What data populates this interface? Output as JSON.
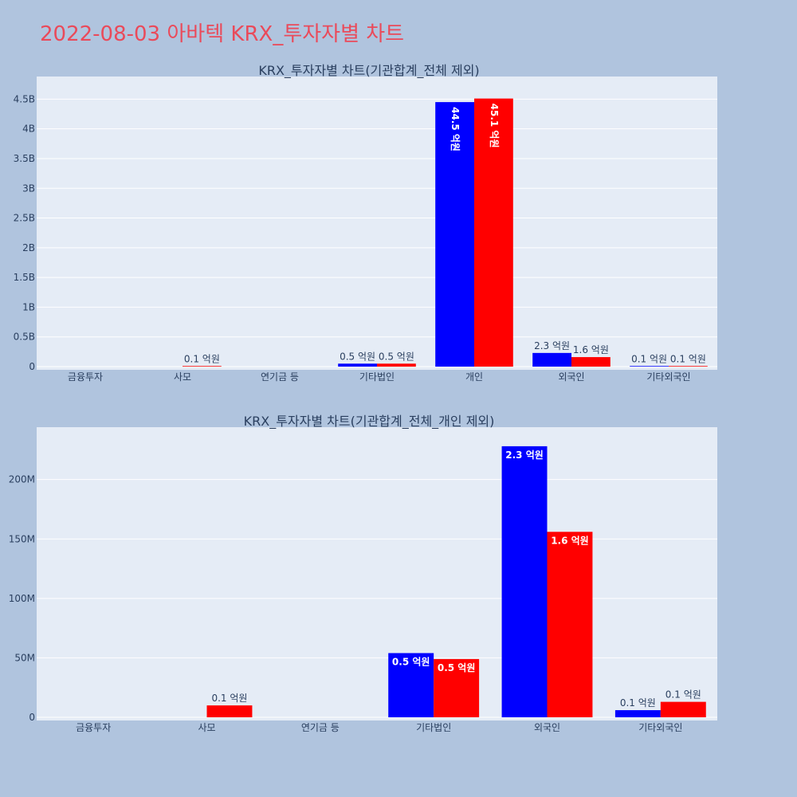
{
  "title": "2022-08-03 아바텍 KRX_투자자별 차트",
  "colors": {
    "series_a": "#0000ff",
    "series_b": "#ff0000",
    "plot_bg": "#e5ecf6",
    "page_bg": "#b0c4de",
    "title": "#ea4a5a"
  },
  "chart_data": [
    {
      "type": "bar",
      "title": "KRX_투자자별 차트(기관합계_전체 제외)",
      "categories": [
        "금융투자",
        "사모",
        "연기금 등",
        "기타법인",
        "개인",
        "외국인",
        "기타외국인"
      ],
      "series": [
        {
          "values": [
            0,
            0,
            0,
            50000000,
            4450000000,
            230000000,
            10000000
          ],
          "labels": [
            "",
            "",
            "",
            "0.5 억원",
            "44.5 억원",
            "2.3 억원",
            "0.1 억원"
          ]
        },
        {
          "values": [
            0,
            10000000,
            0,
            50000000,
            4510000000,
            160000000,
            10000000
          ],
          "labels": [
            "",
            "0.1 억원",
            "",
            "0.5 억원",
            "45.1 억원",
            "1.6 억원",
            "0.1 억원"
          ]
        }
      ],
      "ylim": [
        0,
        4800000000
      ],
      "yticks": [
        0,
        500000000,
        1000000000,
        1500000000,
        2000000000,
        2500000000,
        3000000000,
        3500000000,
        4000000000,
        4500000000
      ],
      "ytick_labels": [
        "0",
        "0.5B",
        "1B",
        "1.5B",
        "2B",
        "2.5B",
        "3B",
        "3.5B",
        "4B",
        "4.5B"
      ],
      "grid": true
    },
    {
      "type": "bar",
      "title": "KRX_투자자별 차트(기관합계_전체_개인 제외)",
      "categories": [
        "금융투자",
        "사모",
        "연기금 등",
        "기타법인",
        "외국인",
        "기타외국인"
      ],
      "series": [
        {
          "values": [
            0,
            0,
            0,
            54000000,
            228000000,
            6000000
          ],
          "labels": [
            "",
            "",
            "",
            "0.5 억원",
            "2.3 억원",
            "0.1 억원"
          ]
        },
        {
          "values": [
            0,
            10000000,
            0,
            49000000,
            156000000,
            13000000
          ],
          "labels": [
            "",
            "0.1 억원",
            "",
            "0.5 억원",
            "1.6 억원",
            "0.1 억원"
          ]
        }
      ],
      "ylim": [
        0,
        240000000
      ],
      "yticks": [
        0,
        50000000,
        100000000,
        150000000,
        200000000
      ],
      "ytick_labels": [
        "0",
        "50M",
        "100M",
        "150M",
        "200M"
      ],
      "grid": true
    }
  ]
}
